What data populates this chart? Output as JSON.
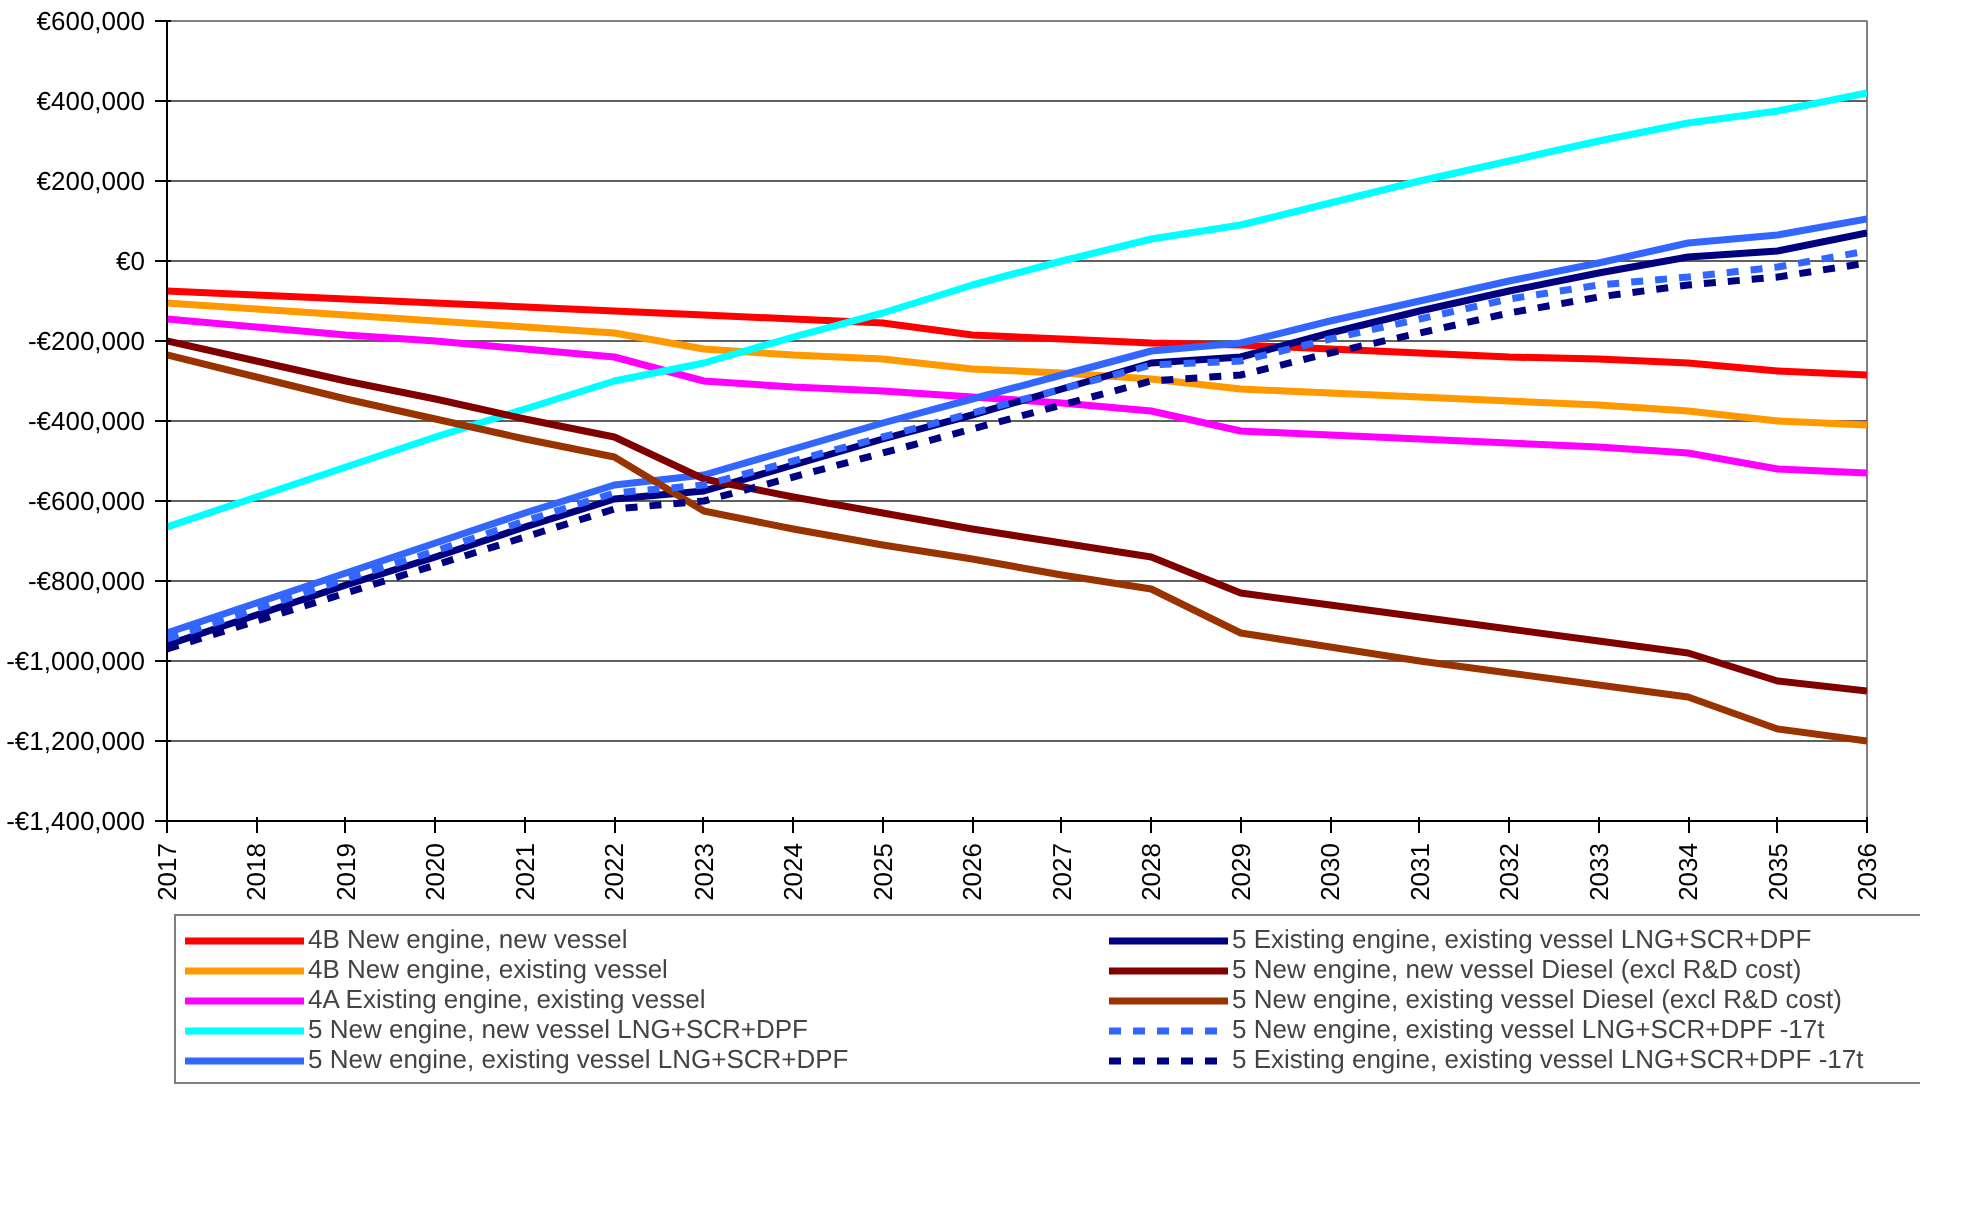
{
  "chart_data": {
    "type": "line",
    "x": [
      2017,
      2018,
      2019,
      2020,
      2021,
      2022,
      2023,
      2024,
      2025,
      2026,
      2027,
      2028,
      2029,
      2030,
      2031,
      2032,
      2033,
      2034,
      2035,
      2036
    ],
    "xlim": [
      2017,
      2036
    ],
    "xticks": [
      2017,
      2018,
      2019,
      2020,
      2021,
      2022,
      2023,
      2024,
      2025,
      2026,
      2027,
      2028,
      2029,
      2030,
      2031,
      2032,
      2033,
      2034,
      2035,
      2036
    ],
    "ylim": [
      -1400000,
      600000
    ],
    "yticks": [
      {
        "value": -1400000,
        "label": "-€1,400,000"
      },
      {
        "value": -1200000,
        "label": "-€1,200,000"
      },
      {
        "value": -1000000,
        "label": "-€1,000,000"
      },
      {
        "value": -800000,
        "label": "-€800,000"
      },
      {
        "value": -600000,
        "label": "-€600,000"
      },
      {
        "value": -400000,
        "label": "-€400,000"
      },
      {
        "value": -200000,
        "label": "-€200,000"
      },
      {
        "value": 0,
        "label": "€0"
      },
      {
        "value": 200000,
        "label": "€200,000"
      },
      {
        "value": 400000,
        "label": "€400,000"
      },
      {
        "value": 600000,
        "label": "€600,000"
      }
    ],
    "grid": "y",
    "legend": "bottom",
    "marker": "none",
    "series": [
      {
        "name": "4B New engine, new vessel",
        "color": "#ff0000",
        "values": [
          -75000,
          -85000,
          -95000,
          -105000,
          -115000,
          -125000,
          -135000,
          -145000,
          -155000,
          -185000,
          -195000,
          -205000,
          -210000,
          -220000,
          -230000,
          -240000,
          -245000,
          -255000,
          -275000,
          -285000
        ]
      },
      {
        "name": "4B New engine, existing vessel",
        "color": "#ff9900",
        "values": [
          -105000,
          -120000,
          -135000,
          -150000,
          -165000,
          -180000,
          -220000,
          -235000,
          -245000,
          -270000,
          -280000,
          -295000,
          -320000,
          -330000,
          -340000,
          -350000,
          -360000,
          -375000,
          -400000,
          -410000
        ]
      },
      {
        "name": "4A Existing engine, existing vessel",
        "color": "#ff00ff",
        "values": [
          -145000,
          -165000,
          -185000,
          -200000,
          -220000,
          -240000,
          -300000,
          -315000,
          -325000,
          -340000,
          -355000,
          -375000,
          -425000,
          -435000,
          -445000,
          -455000,
          -465000,
          -480000,
          -520000,
          -530000
        ]
      },
      {
        "name": "5 New engine, new vessel LNG+SCR+DPF",
        "color": "#00ffff",
        "values": [
          -665000,
          -590000,
          -515000,
          -440000,
          -370000,
          -300000,
          -255000,
          -190000,
          -130000,
          -60000,
          0,
          55000,
          90000,
          145000,
          200000,
          250000,
          300000,
          345000,
          375000,
          420000
        ]
      },
      {
        "name": "5 New engine, existing vessel LNG+SCR+DPF",
        "color": "#3366ff",
        "values": [
          -930000,
          -855000,
          -780000,
          -705000,
          -630000,
          -560000,
          -535000,
          -470000,
          -405000,
          -345000,
          -285000,
          -225000,
          -205000,
          -150000,
          -100000,
          -50000,
          -5000,
          45000,
          65000,
          105000
        ]
      },
      {
        "name": "5 Existing engine, existing vessel LNG+SCR+DPF",
        "color": "#000080",
        "values": [
          -960000,
          -885000,
          -810000,
          -740000,
          -665000,
          -595000,
          -575000,
          -510000,
          -445000,
          -385000,
          -320000,
          -255000,
          -240000,
          -180000,
          -125000,
          -75000,
          -30000,
          10000,
          25000,
          70000
        ]
      },
      {
        "name": "5 New engine, new vessel Diesel (excl R&D cost)",
        "color": "#800000",
        "values": [
          -200000,
          -250000,
          -300000,
          -345000,
          -395000,
          -440000,
          -545000,
          -590000,
          -630000,
          -670000,
          -705000,
          -740000,
          -830000,
          -860000,
          -890000,
          -920000,
          -950000,
          -980000,
          -1050000,
          -1075000
        ]
      },
      {
        "name": "5 New engine, existing vessel Diesel (excl R&D cost)",
        "color": "#993300",
        "values": [
          -235000,
          -290000,
          -345000,
          -395000,
          -445000,
          -490000,
          -625000,
          -670000,
          -710000,
          -745000,
          -785000,
          -820000,
          -930000,
          -965000,
          -1000000,
          -1030000,
          -1060000,
          -1090000,
          -1170000,
          -1200000
        ]
      },
      {
        "name": "5 New engine, existing vessel LNG+SCR+DPF -17t",
        "color": "#3366ff",
        "line_style": "dashed",
        "values": [
          -945000,
          -870000,
          -795000,
          -725000,
          -650000,
          -580000,
          -560000,
          -500000,
          -440000,
          -380000,
          -320000,
          -260000,
          -250000,
          -195000,
          -145000,
          -95000,
          -60000,
          -40000,
          -15000,
          25000
        ]
      },
      {
        "name": "5 Existing engine, existing vessel LNG+SCR+DPF -17t",
        "color": "#000080",
        "line_style": "dashed",
        "values": [
          -970000,
          -900000,
          -830000,
          -760000,
          -690000,
          -620000,
          -600000,
          -540000,
          -480000,
          -420000,
          -360000,
          -300000,
          -285000,
          -230000,
          -180000,
          -130000,
          -90000,
          -60000,
          -40000,
          -5000
        ]
      }
    ]
  }
}
